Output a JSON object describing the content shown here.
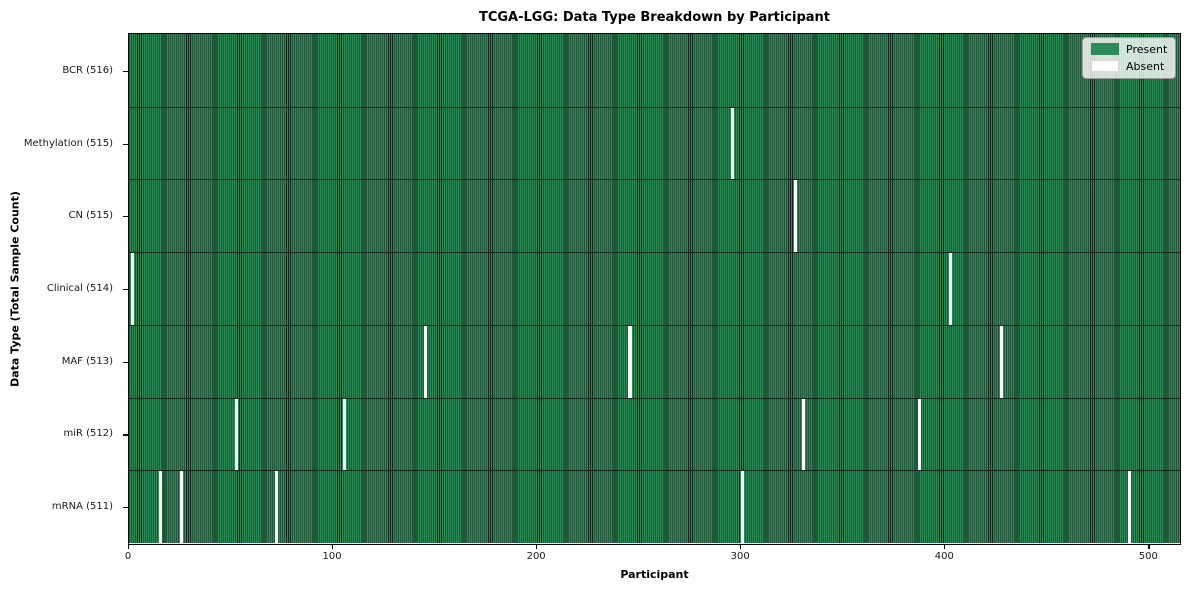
{
  "chart_data": {
    "type": "heatmap",
    "title": "TCGA-LGG: Data Type Breakdown by Participant",
    "xlabel": "Participant",
    "ylabel": "Data Type (Total Sample Count)",
    "x_range": [
      0,
      516
    ],
    "x_ticks": [
      0,
      100,
      200,
      300,
      400,
      500
    ],
    "grid": false,
    "legend_position": "upper right",
    "colors": {
      "present": "#2e8b57",
      "absent": "#ffffff",
      "cell_edge": "#0d2418"
    },
    "legend_entries": [
      {
        "label": "Present",
        "color": "#2e8b57"
      },
      {
        "label": "Absent",
        "color": "#ffffff"
      }
    ],
    "rows": [
      {
        "label": "BCR (516)",
        "data_type": "BCR",
        "present_count": 516,
        "absent_indices": []
      },
      {
        "label": "Methylation (515)",
        "data_type": "Methylation",
        "present_count": 515,
        "absent_indices": [
          295
        ]
      },
      {
        "label": "CN (515)",
        "data_type": "CN",
        "present_count": 515,
        "absent_indices": [
          326
        ]
      },
      {
        "label": "Clinical (514)",
        "data_type": "Clinical",
        "present_count": 514,
        "absent_indices": [
          1,
          402
        ]
      },
      {
        "label": "MAF (513)",
        "data_type": "MAF",
        "present_count": 513,
        "absent_indices": [
          145,
          245,
          427
        ]
      },
      {
        "label": "miR (512)",
        "data_type": "miR",
        "present_count": 512,
        "absent_indices": [
          52,
          105,
          330,
          387
        ]
      },
      {
        "label": "mRNA (511)",
        "data_type": "mRNA",
        "present_count": 511,
        "absent_indices": [
          15,
          25,
          72,
          300,
          490
        ]
      }
    ]
  }
}
